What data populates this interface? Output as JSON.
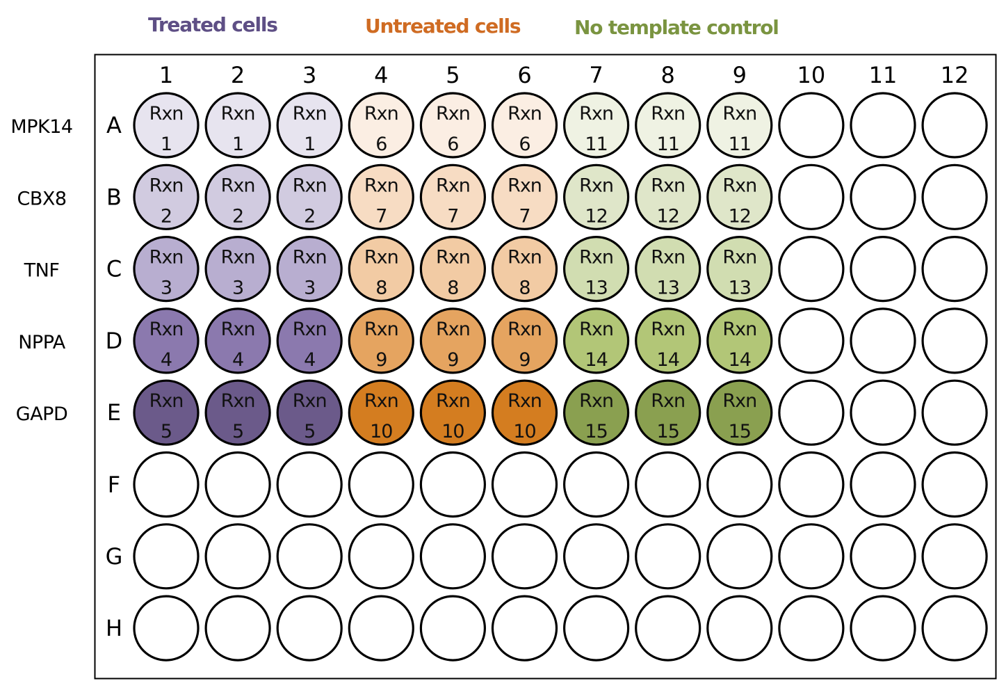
{
  "legend": [
    {
      "label": "Treated cells",
      "color": "#5e4f85"
    },
    {
      "label": "Untreated cells",
      "color": "#cf6b22"
    },
    {
      "label": "No template control",
      "color": "#7a9440"
    }
  ],
  "columns": [
    "1",
    "2",
    "3",
    "4",
    "5",
    "6",
    "7",
    "8",
    "9",
    "10",
    "11",
    "12"
  ],
  "rows": [
    {
      "letter": "A",
      "gene": "MPK14"
    },
    {
      "letter": "B",
      "gene": "CBX8"
    },
    {
      "letter": "C",
      "gene": "TNF"
    },
    {
      "letter": "D",
      "gene": "NPPA"
    },
    {
      "letter": "E",
      "gene": "GAPD"
    },
    {
      "letter": "F",
      "gene": ""
    },
    {
      "letter": "G",
      "gene": ""
    },
    {
      "letter": "H",
      "gene": ""
    }
  ],
  "well_prefix": "Rxn",
  "groups": [
    {
      "name": "Treated cells",
      "columns": [
        1,
        2,
        3
      ],
      "row_colors": [
        "#e7e4ef",
        "#d1cbe0",
        "#b8aed0",
        "#8b79ae",
        "#6b5a8a"
      ]
    },
    {
      "name": "Untreated cells",
      "columns": [
        4,
        5,
        6
      ],
      "row_colors": [
        "#fbeee3",
        "#f7dcc3",
        "#f2cba4",
        "#e5a460",
        "#d47d20"
      ]
    },
    {
      "name": "No template control",
      "columns": [
        7,
        8,
        9
      ],
      "row_colors": [
        "#eff2e3",
        "#dfe6c9",
        "#d1ddb1",
        "#b2c677",
        "#8aa050"
      ]
    }
  ],
  "reactions": [
    [
      "1",
      "1",
      "1",
      "6",
      "6",
      "6",
      "11",
      "11",
      "11",
      "",
      "",
      ""
    ],
    [
      "2",
      "2",
      "2",
      "7",
      "7",
      "7",
      "12",
      "12",
      "12",
      "",
      "",
      ""
    ],
    [
      "3",
      "3",
      "3",
      "8",
      "8",
      "8",
      "13",
      "13",
      "13",
      "",
      "",
      ""
    ],
    [
      "4",
      "4",
      "4",
      "9",
      "9",
      "9",
      "14",
      "14",
      "14",
      "",
      "",
      ""
    ],
    [
      "5",
      "5",
      "5",
      "10",
      "10",
      "10",
      "15",
      "15",
      "15",
      "",
      "",
      ""
    ],
    [
      "",
      "",
      "",
      "",
      "",
      "",
      "",
      "",
      "",
      "",
      "",
      ""
    ],
    [
      "",
      "",
      "",
      "",
      "",
      "",
      "",
      "",
      "",
      "",
      "",
      ""
    ],
    [
      "",
      "",
      "",
      "",
      "",
      "",
      "",
      "",
      "",
      "",
      "",
      ""
    ]
  ],
  "empty_well_color": "#ffffff"
}
